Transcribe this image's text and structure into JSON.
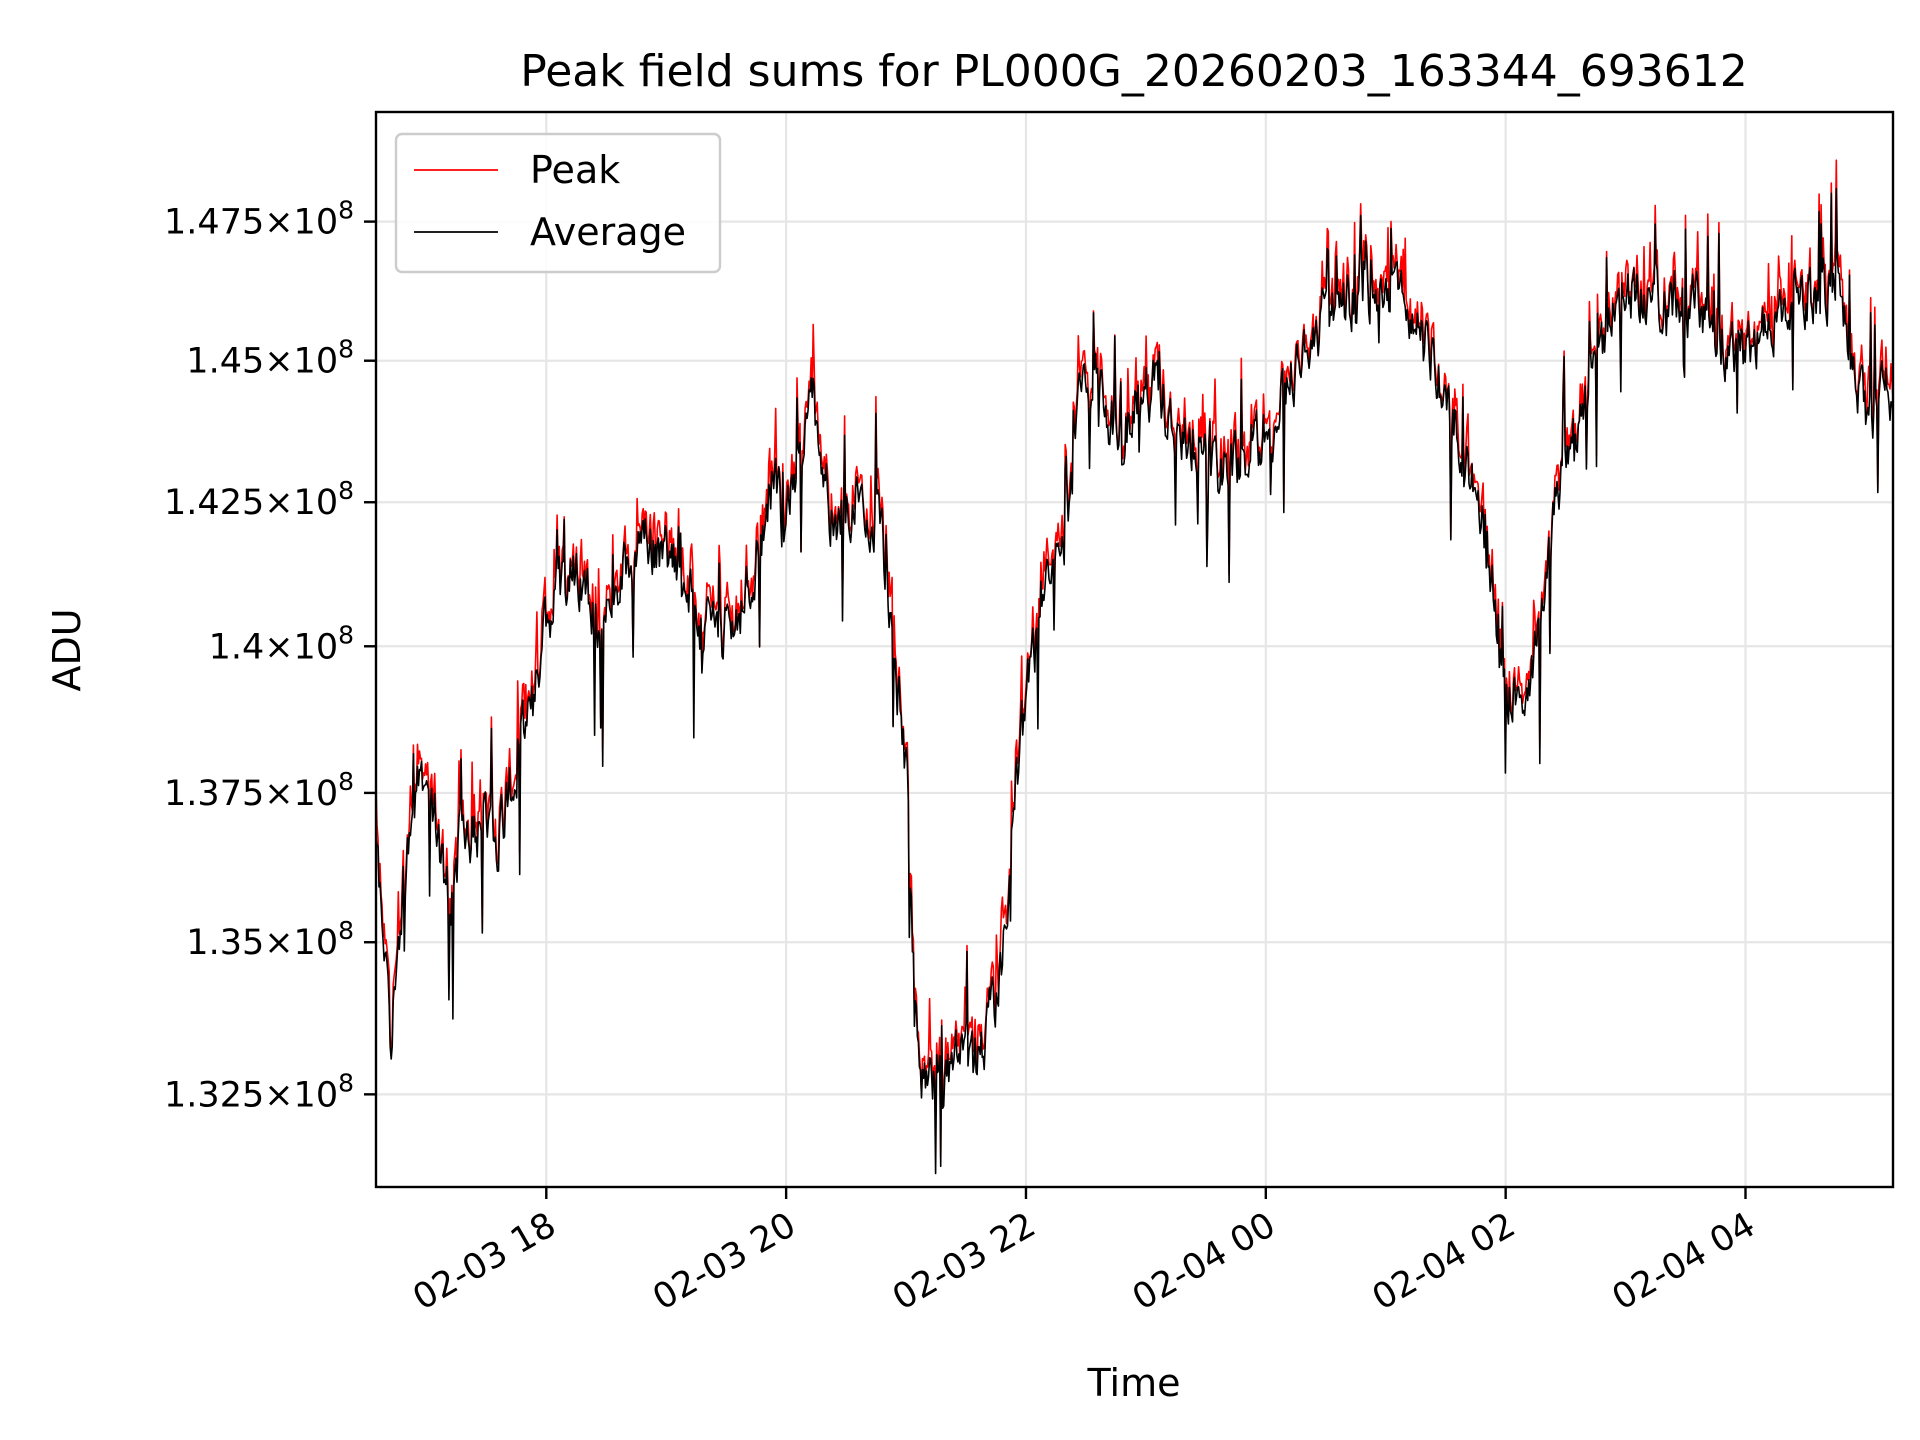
{
  "chart_data": {
    "type": "line",
    "title": "Peak field sums for PL000G_20260203_163344_693612",
    "xlabel": "Time",
    "ylabel": "ADU",
    "x_range_hours": [
      16.58,
      29.23
    ],
    "x_ticks": [
      {
        "hour": 18,
        "label": "02-03 18"
      },
      {
        "hour": 20,
        "label": "02-03 20"
      },
      {
        "hour": 22,
        "label": "02-03 22"
      },
      {
        "hour": 24,
        "label": "02-04 00"
      },
      {
        "hour": 26,
        "label": "02-04 02"
      },
      {
        "hour": 28,
        "label": "02-04 04"
      }
    ],
    "y_scale": "log",
    "ylim": [
      131000000,
      149500000
    ],
    "y_ticks": [
      {
        "value": 132500000,
        "mantissa": "1.325",
        "exponent": "8"
      },
      {
        "value": 135000000,
        "mantissa": "1.35",
        "exponent": "8"
      },
      {
        "value": 137500000,
        "mantissa": "1.375",
        "exponent": "8"
      },
      {
        "value": 140000000,
        "mantissa": "1.4",
        "exponent": "8"
      },
      {
        "value": 142500000,
        "mantissa": "1.425",
        "exponent": "8"
      },
      {
        "value": 145000000,
        "mantissa": "1.45",
        "exponent": "8"
      },
      {
        "value": 147500000,
        "mantissa": "1.475",
        "exponent": "8"
      }
    ],
    "grid": true,
    "legend_position": "top-left",
    "series": [
      {
        "name": "Peak",
        "color": "#ff0000"
      },
      {
        "name": "Average",
        "color": "#000000"
      }
    ],
    "average_trend": {
      "x": [
        16.58,
        16.7,
        16.9,
        17.0,
        17.2,
        17.3,
        17.6,
        17.9,
        18.0,
        18.2,
        18.5,
        18.7,
        19.0,
        19.3,
        19.6,
        19.9,
        20.0,
        20.2,
        20.4,
        20.6,
        20.8,
        21.0,
        21.1,
        21.3,
        21.6,
        21.8,
        21.9,
        22.1,
        22.3,
        22.5,
        22.8,
        23.0,
        23.3,
        23.6,
        24.0,
        24.4,
        24.7,
        25.0,
        25.3,
        25.6,
        25.8,
        26.0,
        26.2,
        26.5,
        26.8,
        27.0,
        27.3,
        27.6,
        27.9,
        28.2,
        28.5,
        28.8,
        29.0,
        29.23
      ],
      "y": [
        136600000,
        133600000,
        137500000,
        138000000,
        135400000,
        137000000,
        136900000,
        139000000,
        140600000,
        141300000,
        140300000,
        141600000,
        141800000,
        140200000,
        140200000,
        143000000,
        141900000,
        144700000,
        142000000,
        142800000,
        142000000,
        137800000,
        132800000,
        132800000,
        133000000,
        134500000,
        137500000,
        140300000,
        141500000,
        145000000,
        143600000,
        144700000,
        143700000,
        142800000,
        143700000,
        145600000,
        146100000,
        146200000,
        145500000,
        143800000,
        142400000,
        139300000,
        139300000,
        143500000,
        145200000,
        146300000,
        146100000,
        146000000,
        145100000,
        145600000,
        146200000,
        146300000,
        143800000,
        144600000
      ]
    }
  }
}
